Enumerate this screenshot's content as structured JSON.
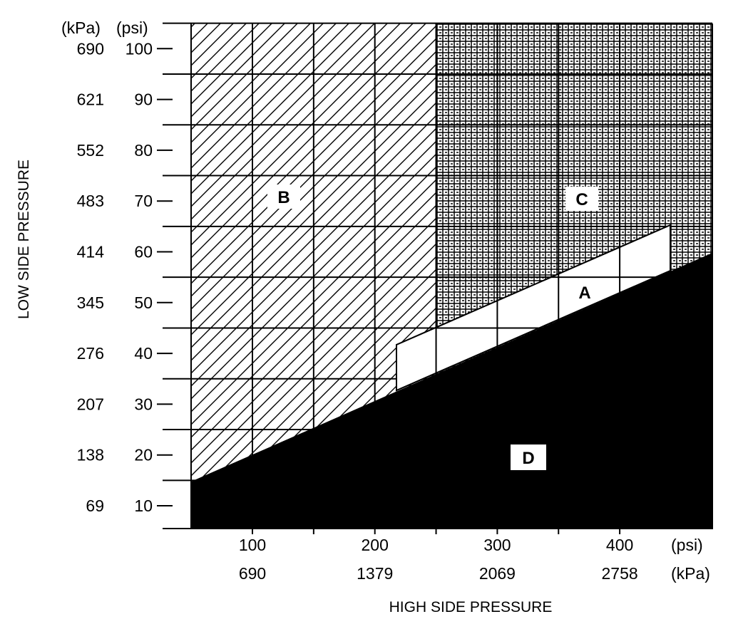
{
  "chart_data": {
    "type": "diagram",
    "x_axis": {
      "title": "HIGH SIDE PRESSURE",
      "units_psi_label": "(psi)",
      "units_kpa_label": "(kPa)",
      "ticks_psi": [
        "100",
        "200",
        "300",
        "400"
      ],
      "ticks_kpa": [
        "690",
        "1379",
        "2069",
        "2758"
      ],
      "range_psi": [
        25,
        450
      ]
    },
    "y_axis": {
      "title": "LOW SIDE PRESSURE",
      "units_kpa_label": "(kPa)",
      "units_psi_label": "(psi)",
      "ticks_psi": [
        "10",
        "20",
        "30",
        "40",
        "50",
        "60",
        "70",
        "80",
        "90",
        "100"
      ],
      "ticks_kpa": [
        "69",
        "138",
        "207",
        "276",
        "345",
        "414",
        "483",
        "552",
        "621",
        "690"
      ],
      "range_psi": [
        5,
        105
      ]
    },
    "regions": [
      {
        "label": "A",
        "fill": "white"
      },
      {
        "label": "B",
        "fill": "diagonal-hatch"
      },
      {
        "label": "C",
        "fill": "cross-hatch"
      },
      {
        "label": "D",
        "fill": "solid-black"
      }
    ]
  }
}
